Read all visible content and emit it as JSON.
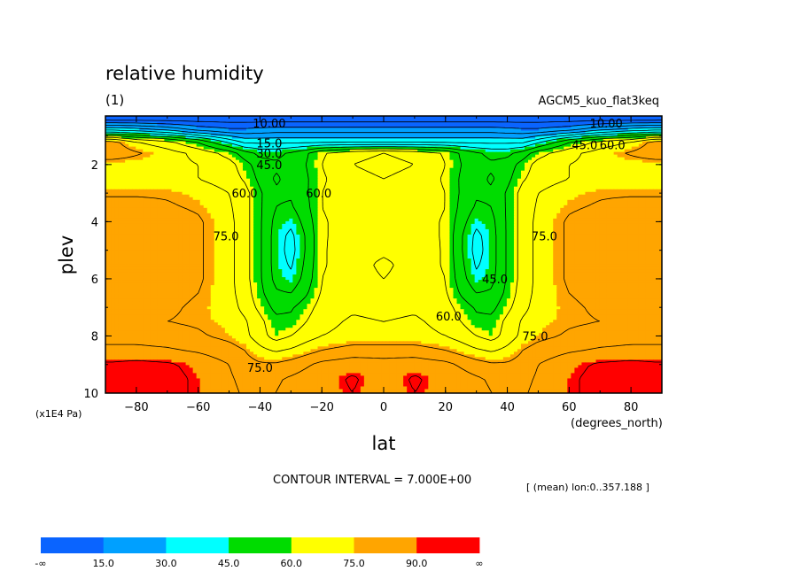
{
  "chart_data": {
    "type": "heatmap",
    "title": "relative humidity",
    "subtitle": "(1)",
    "experiment": "AGCM5_kuo_flat3keq",
    "xlabel": "lat",
    "xunits": "(degrees_north)",
    "ylabel": "plev",
    "yunits": "(x1E4 Pa)",
    "xlim": [
      -90,
      90
    ],
    "ylim": [
      10,
      0.3
    ],
    "xticks": [
      -80,
      -60,
      -40,
      -20,
      0,
      20,
      40,
      60,
      80
    ],
    "yticks": [
      2,
      4,
      6,
      8,
      10
    ],
    "x": [
      -88,
      -80,
      -70,
      -60,
      -50,
      -45,
      -40,
      -35,
      -30,
      -25,
      -20,
      -10,
      0,
      10,
      20,
      25,
      30,
      35,
      40,
      45,
      50,
      60,
      70,
      80,
      88
    ],
    "y": [
      0.4,
      0.8,
      1.2,
      1.6,
      2.0,
      2.5,
      3.0,
      3.5,
      4.0,
      4.5,
      5.0,
      5.5,
      6.0,
      6.5,
      7.0,
      7.5,
      8.0,
      8.5,
      9.0,
      9.5,
      10.0
    ],
    "values": [
      [
        3,
        3,
        3,
        3,
        3,
        3,
        3,
        3,
        3,
        3,
        3,
        3,
        3,
        3,
        3,
        3,
        3,
        3,
        3,
        3,
        3,
        3,
        3,
        3,
        3
      ],
      [
        35,
        33,
        28,
        20,
        16,
        16,
        17,
        18,
        18,
        18,
        18,
        18,
        18,
        18,
        18,
        18,
        18,
        18,
        17,
        16,
        16,
        20,
        28,
        33,
        35
      ],
      [
        80,
        70,
        65,
        55,
        40,
        33,
        33,
        33,
        33,
        33,
        33,
        33,
        33,
        33,
        33,
        33,
        33,
        33,
        33,
        33,
        40,
        55,
        65,
        70,
        80
      ],
      [
        82,
        78,
        73,
        68,
        60,
        52,
        47,
        47,
        50,
        55,
        62,
        68,
        70,
        68,
        62,
        55,
        50,
        47,
        47,
        52,
        60,
        68,
        73,
        78,
        82
      ],
      [
        73,
        73,
        72,
        70,
        66,
        59,
        52,
        50,
        52,
        56,
        63,
        70,
        72,
        70,
        63,
        56,
        52,
        50,
        52,
        59,
        66,
        70,
        72,
        73,
        73
      ],
      [
        73,
        73,
        72,
        70,
        67,
        62,
        54,
        48,
        51,
        55,
        62,
        68,
        70,
        68,
        62,
        55,
        51,
        48,
        54,
        62,
        67,
        70,
        72,
        73,
        73
      ],
      [
        76,
        76,
        76,
        74,
        70,
        66,
        57,
        50,
        50,
        55,
        63,
        67,
        68,
        67,
        63,
        55,
        50,
        50,
        57,
        66,
        70,
        74,
        76,
        76,
        76
      ],
      [
        80,
        80,
        78,
        76,
        71,
        66,
        57,
        49,
        48,
        54,
        63,
        67,
        67,
        67,
        63,
        54,
        48,
        49,
        57,
        66,
        71,
        76,
        78,
        80,
        80
      ],
      [
        82,
        82,
        81,
        78,
        72,
        66,
        57,
        47,
        44,
        52,
        62,
        67,
        67,
        67,
        62,
        52,
        44,
        47,
        57,
        66,
        72,
        78,
        81,
        82,
        82
      ],
      [
        82,
        82,
        81,
        78,
        72,
        66,
        57,
        46,
        40,
        50,
        62,
        67,
        67,
        67,
        62,
        50,
        40,
        46,
        57,
        66,
        72,
        78,
        81,
        82,
        82
      ],
      [
        82,
        82,
        81,
        78,
        72,
        66,
        57,
        46,
        39,
        50,
        62,
        68,
        69,
        68,
        62,
        50,
        39,
        46,
        57,
        66,
        72,
        78,
        81,
        82,
        82
      ],
      [
        82,
        82,
        81,
        78,
        72,
        66,
        57,
        46,
        41,
        51,
        62,
        68,
        71,
        68,
        62,
        51,
        41,
        46,
        57,
        66,
        72,
        78,
        81,
        82,
        82
      ],
      [
        82,
        82,
        81,
        78,
        72,
        66,
        57,
        47,
        44,
        52,
        63,
        68,
        70,
        68,
        63,
        52,
        44,
        47,
        57,
        66,
        72,
        78,
        81,
        82,
        82
      ],
      [
        80,
        80,
        79,
        77,
        72,
        67,
        58,
        50,
        49,
        55,
        64,
        68,
        68,
        68,
        64,
        55,
        49,
        50,
        58,
        67,
        72,
        77,
        79,
        80,
        80
      ],
      [
        79,
        79,
        78,
        76,
        73,
        68,
        61,
        54,
        55,
        60,
        66,
        69,
        68,
        69,
        66,
        60,
        55,
        54,
        61,
        68,
        73,
        76,
        78,
        79,
        79
      ],
      [
        77,
        77,
        77,
        76,
        74,
        71,
        65,
        58,
        58,
        63,
        68,
        71,
        70,
        71,
        68,
        63,
        58,
        58,
        65,
        71,
        74,
        76,
        77,
        77,
        77
      ],
      [
        81,
        81,
        80,
        78,
        75,
        72,
        66,
        60,
        63,
        67,
        70,
        72,
        72,
        72,
        70,
        67,
        63,
        60,
        66,
        72,
        75,
        78,
        80,
        81,
        81
      ],
      [
        86,
        86,
        85,
        83,
        80,
        77,
        72,
        69,
        71,
        74,
        77,
        80,
        80,
        80,
        77,
        74,
        71,
        69,
        72,
        77,
        80,
        83,
        85,
        86,
        86
      ],
      [
        92,
        93,
        92,
        89,
        84,
        80,
        78,
        78,
        80,
        83,
        86,
        88,
        87,
        88,
        86,
        83,
        80,
        78,
        78,
        80,
        84,
        89,
        92,
        93,
        92
      ],
      [
        93,
        94,
        93,
        90,
        85,
        82,
        81,
        83,
        85,
        87,
        88,
        92,
        87,
        92,
        88,
        87,
        85,
        83,
        81,
        82,
        85,
        90,
        93,
        94,
        93
      ],
      [
        93,
        94,
        93,
        90,
        86,
        83,
        82,
        84,
        86,
        88,
        88,
        91,
        86,
        91,
        88,
        88,
        86,
        84,
        82,
        83,
        86,
        90,
        93,
        94,
        93
      ]
    ],
    "contour_interval_text": "CONTOUR INTERVAL = 7.000E+00",
    "mean_text": "[ (mean) lon:0..357.188 ]",
    "contour_labels": [
      {
        "text": "10.00",
        "x": -37,
        "y": 0.55
      },
      {
        "text": "15.0",
        "x": -37,
        "y": 1.25
      },
      {
        "text": "30.0",
        "x": -37,
        "y": 1.6
      },
      {
        "text": "45.0",
        "x": -37,
        "y": 2.0
      },
      {
        "text": "10.00",
        "x": 72,
        "y": 0.55
      },
      {
        "text": "45.0",
        "x": 65,
        "y": 1.3
      },
      {
        "text": "60.0",
        "x": 74,
        "y": 1.3
      },
      {
        "text": "60.0",
        "x": -45,
        "y": 3.0
      },
      {
        "text": "60.0",
        "x": -21,
        "y": 3.0
      },
      {
        "text": "75.0",
        "x": -51,
        "y": 4.5
      },
      {
        "text": "75.0",
        "x": 52,
        "y": 4.5
      },
      {
        "text": "45.0",
        "x": 36,
        "y": 6.0
      },
      {
        "text": "60.0",
        "x": 21,
        "y": 7.3
      },
      {
        "text": "75.0",
        "x": -40,
        "y": 9.1
      },
      {
        "text": "75.0",
        "x": 49,
        "y": 8.0
      }
    ],
    "colorbar": {
      "colors": [
        "#0a64ff",
        "#00a0ff",
        "#00ffff",
        "#00dc00",
        "#ffff00",
        "#ffa500",
        "#ff0000"
      ],
      "labels": [
        "-∞",
        "15.0",
        "30.0",
        "45.0",
        "60.0",
        "75.0",
        "90.0",
        "∞"
      ],
      "bounds": [
        -1000,
        15,
        30,
        45,
        60,
        75,
        90,
        1000
      ]
    }
  }
}
